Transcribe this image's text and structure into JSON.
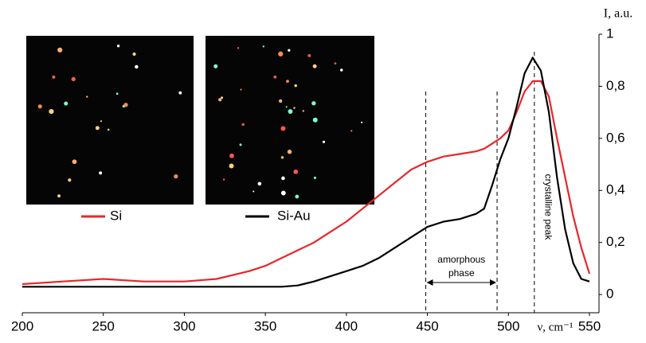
{
  "chart_data": {
    "type": "line",
    "x": [
      200,
      225,
      250,
      275,
      300,
      320,
      340,
      350,
      360,
      370,
      380,
      390,
      400,
      410,
      420,
      430,
      440,
      450,
      460,
      470,
      480,
      485,
      490,
      495,
      500,
      505,
      510,
      515,
      520,
      525,
      530,
      535,
      540,
      545,
      550
    ],
    "series": [
      {
        "name": "Si",
        "color": "#e8262b",
        "values": [
          0.04,
          0.05,
          0.06,
          0.05,
          0.05,
          0.06,
          0.09,
          0.11,
          0.14,
          0.17,
          0.2,
          0.24,
          0.28,
          0.33,
          0.38,
          0.43,
          0.48,
          0.51,
          0.53,
          0.54,
          0.55,
          0.56,
          0.58,
          0.6,
          0.63,
          0.7,
          0.78,
          0.82,
          0.82,
          0.76,
          0.6,
          0.45,
          0.3,
          0.18,
          0.08
        ]
      },
      {
        "name": "Si-Au",
        "color": "#000000",
        "values": [
          0.03,
          0.03,
          0.03,
          0.03,
          0.03,
          0.03,
          0.03,
          0.03,
          0.03,
          0.035,
          0.05,
          0.07,
          0.09,
          0.11,
          0.14,
          0.18,
          0.22,
          0.26,
          0.28,
          0.29,
          0.31,
          0.33,
          0.42,
          0.52,
          0.6,
          0.72,
          0.85,
          0.91,
          0.86,
          0.7,
          0.45,
          0.25,
          0.12,
          0.06,
          0.05
        ]
      }
    ],
    "xlim": [
      200,
      550
    ],
    "xticks": [
      200,
      250,
      300,
      350,
      400,
      450,
      500,
      550
    ],
    "ylim": [
      -0.07,
      1
    ],
    "yticks": [
      0,
      {
        "value": 0.2,
        "label": "0,2"
      },
      {
        "value": 0.4,
        "label": "0,4"
      },
      {
        "value": 0.6,
        "label": "0,6"
      },
      {
        "value": 0.8,
        "label": "0,8"
      },
      1
    ],
    "x_label": "ν, cm⁻¹",
    "y_label": "I, a.u.",
    "amorphous_phase": {
      "lines": [
        "amorphous",
        "phase"
      ],
      "x": [
        449,
        493
      ]
    },
    "crystalline_peak": {
      "text": "crystalline peak",
      "x": 516
    }
  }
}
